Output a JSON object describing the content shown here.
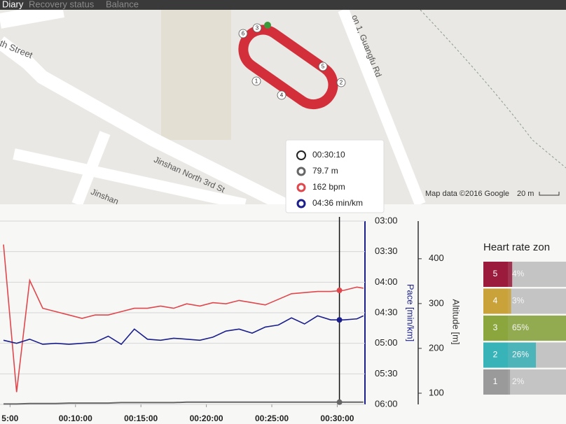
{
  "tabs": [
    "Diary",
    "Recovery status",
    "Balance"
  ],
  "map": {
    "streets": [
      "th Street",
      "Jinshan North 3rd St",
      "Jinshan",
      "on 1, Guangfu Rd"
    ],
    "lap_markers": [
      "1",
      "2",
      "3",
      "4",
      "5",
      "6"
    ],
    "attribution": "Map data ©2016 Google",
    "scale": "20 m"
  },
  "tooltip": {
    "time": "00:30:10",
    "altitude": "79.7 m",
    "heart_rate": "162 bpm",
    "pace": "04:36 min/km"
  },
  "chart_data": {
    "type": "line",
    "x": [
      270,
      330,
      390,
      450,
      510,
      570,
      630,
      690,
      750,
      810,
      870,
      930,
      990,
      1050,
      1110,
      1170,
      1230,
      1290,
      1350,
      1410,
      1470,
      1530,
      1590,
      1650,
      1710,
      1770,
      1830,
      1890,
      1920
    ],
    "xlim": [
      254,
      1927
    ],
    "xticks": [
      {
        "value": 300,
        "label": "5:00"
      },
      {
        "value": 600,
        "label": "00:10:00"
      },
      {
        "value": 900,
        "label": "00:15:00"
      },
      {
        "value": 1200,
        "label": "00:20:00"
      },
      {
        "value": 1500,
        "label": "00:25:00"
      },
      {
        "value": 1800,
        "label": "00:30:00"
      }
    ],
    "cursor_x": 1810,
    "ylabel": "Pace [min/km]",
    "ylim": [
      180,
      360
    ],
    "yticks": [
      {
        "value": 180,
        "label": "03:00"
      },
      {
        "value": 210,
        "label": "03:30"
      },
      {
        "value": 240,
        "label": "04:00"
      },
      {
        "value": 270,
        "label": "04:30"
      },
      {
        "value": 300,
        "label": "05:00"
      },
      {
        "value": 330,
        "label": "05:30"
      },
      {
        "value": 360,
        "label": "06:00"
      }
    ],
    "y2label": "Altitude [m]",
    "y2lim": [
      75,
      484
    ],
    "y2ticks": [
      100,
      200,
      300,
      400
    ],
    "y3lim": [
      60,
      224
    ],
    "grid": true,
    "series": [
      {
        "color": "#e0474c",
        "axis": "y3",
        "values": [
          203,
          71,
          171,
          146,
          143,
          140,
          137,
          140,
          140,
          143,
          146,
          146,
          148,
          146,
          150,
          148,
          151,
          150,
          153,
          151,
          149,
          154,
          159,
          160,
          161,
          161,
          162,
          165,
          164
        ]
      },
      {
        "color": "#1a1f8c",
        "axis": "y",
        "values": [
          297,
          300,
          296,
          301,
          300,
          301,
          300,
          299,
          293,
          301,
          286,
          296,
          297,
          295,
          296,
          297,
          294,
          288,
          286,
          290,
          284,
          282,
          275,
          281,
          273,
          277,
          277,
          276,
          273
        ]
      },
      {
        "color": "#666666",
        "axis": "y2",
        "values": [
          76,
          76,
          77,
          77,
          77,
          78,
          78,
          78,
          78,
          79,
          79,
          79,
          79,
          79,
          80,
          80,
          80,
          80,
          80,
          80,
          80,
          80,
          80,
          80,
          80,
          80,
          80,
          80,
          80
        ]
      }
    ]
  },
  "zones": {
    "title": "Heart rate zon",
    "rows": [
      {
        "zone": "5",
        "color": "#9b1b3c",
        "value": 4,
        "value_label": "4%"
      },
      {
        "zone": "4",
        "color": "#c9a23a",
        "value": 3,
        "value_label": "3%"
      },
      {
        "zone": "3",
        "color": "#8aa63c",
        "value": 65,
        "value_label": "65%"
      },
      {
        "zone": "2",
        "color": "#38b3b8",
        "value": 26,
        "value_label": "26%"
      },
      {
        "zone": "1",
        "color": "#9a9a9a",
        "value": 2,
        "value_label": "2%"
      }
    ]
  }
}
